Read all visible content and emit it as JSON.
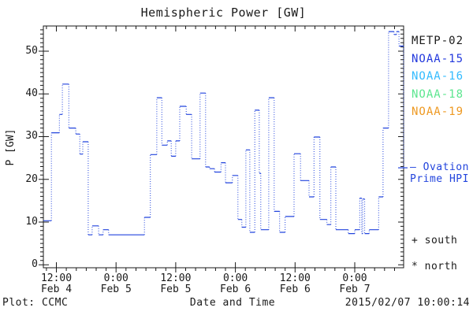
{
  "title": "Hemispheric Power [GW]",
  "axes": {
    "ylabel": "P [GW]",
    "xlabel": "Date and Time",
    "y_ticks": [
      0,
      10,
      20,
      30,
      40,
      50
    ],
    "x_ticks": [
      {
        "time": "12:00",
        "date": "Feb 4",
        "t": 12
      },
      {
        "time": "0:00",
        "date": "Feb 5",
        "t": 24
      },
      {
        "time": "12:00",
        "date": "Feb 5",
        "t": 36
      },
      {
        "time": "0:00",
        "date": "Feb 6",
        "t": 48
      },
      {
        "time": "12:00",
        "date": "Feb 6",
        "t": 60
      },
      {
        "time": "0:00",
        "date": "Feb 7",
        "t": 72
      }
    ]
  },
  "legend": {
    "satellites": [
      {
        "label": "METP-02",
        "color": "#1a1a1a"
      },
      {
        "label": "NOAA-15",
        "color": "#2238dd"
      },
      {
        "label": "NOAA-16",
        "color": "#33bbff"
      },
      {
        "label": "NOAA-18",
        "color": "#5ce68f"
      },
      {
        "label": "NOAA-19",
        "color": "#ee9922"
      }
    ],
    "model_line": {
      "label_line1": "— Ovation",
      "label_line2": "Prime HPI",
      "color": "#2244dd"
    },
    "south_marker": "+ south",
    "north_marker": "* north"
  },
  "footer": {
    "left": "Plot: CCMC",
    "right": "2015/02/07 10:00:14"
  },
  "chart_data": {
    "type": "line",
    "title": "Hemispheric Power [GW]",
    "xlabel": "Date and Time",
    "ylabel": "P [GW]",
    "x_unit": "hours since 2015-02-04 00:00 UT",
    "x_range": [
      9.38,
      81.83
    ],
    "y_range": [
      -0.7,
      55.9
    ],
    "x_major_hours": 12,
    "x_minor_hours": 2,
    "y_major": 10,
    "y_minor": 1,
    "grid": false,
    "line_color": "#2244dd",
    "line_style": "step: solid horizontals, dotted verticals",
    "series": [
      {
        "name": "Ovation Prime HPI",
        "step_points": [
          [
            9.4,
            10.3
          ],
          [
            11.0,
            30.9
          ],
          [
            12.6,
            35.2
          ],
          [
            13.2,
            42.3
          ],
          [
            14.5,
            32.0
          ],
          [
            15.9,
            30.6
          ],
          [
            16.7,
            25.9
          ],
          [
            17.3,
            28.8
          ],
          [
            18.4,
            7.0
          ],
          [
            19.2,
            9.1
          ],
          [
            20.5,
            7.0
          ],
          [
            21.4,
            8.2
          ],
          [
            22.5,
            7.0
          ],
          [
            29.7,
            11.1
          ],
          [
            30.9,
            25.8
          ],
          [
            32.2,
            39.1
          ],
          [
            33.2,
            28.0
          ],
          [
            34.3,
            29.0
          ],
          [
            35.1,
            25.4
          ],
          [
            36.0,
            29.0
          ],
          [
            36.8,
            37.1
          ],
          [
            38.1,
            35.2
          ],
          [
            39.2,
            24.8
          ],
          [
            40.9,
            40.2
          ],
          [
            42.0,
            22.9
          ],
          [
            42.8,
            22.5
          ],
          [
            43.8,
            21.7
          ],
          [
            45.1,
            23.9
          ],
          [
            46.0,
            19.2
          ],
          [
            47.4,
            20.9
          ],
          [
            48.5,
            10.6
          ],
          [
            49.3,
            8.8
          ],
          [
            50.1,
            26.9
          ],
          [
            50.9,
            7.6
          ],
          [
            51.9,
            36.2
          ],
          [
            52.8,
            21.4
          ],
          [
            53.1,
            8.2
          ],
          [
            54.7,
            39.1
          ],
          [
            55.8,
            12.5
          ],
          [
            56.9,
            7.6
          ],
          [
            58.0,
            11.3
          ],
          [
            59.8,
            26.0
          ],
          [
            61.1,
            19.7
          ],
          [
            62.8,
            15.9
          ],
          [
            63.8,
            29.9
          ],
          [
            65.0,
            10.6
          ],
          [
            66.4,
            9.4
          ],
          [
            67.2,
            22.9
          ],
          [
            68.2,
            8.2
          ],
          [
            70.7,
            7.3
          ],
          [
            72.0,
            8.2
          ],
          [
            73.0,
            15.6
          ],
          [
            73.4,
            7.3
          ],
          [
            73.6,
            15.4
          ],
          [
            74.0,
            7.3
          ],
          [
            74.9,
            8.2
          ],
          [
            76.8,
            15.9
          ],
          [
            77.7,
            32.0
          ],
          [
            78.8,
            54.6
          ],
          [
            79.9,
            53.9
          ],
          [
            80.4,
            54.6
          ],
          [
            80.9,
            51.2
          ],
          [
            81.8,
            51.2
          ]
        ],
        "end_drop_to": 22.7
      }
    ]
  }
}
